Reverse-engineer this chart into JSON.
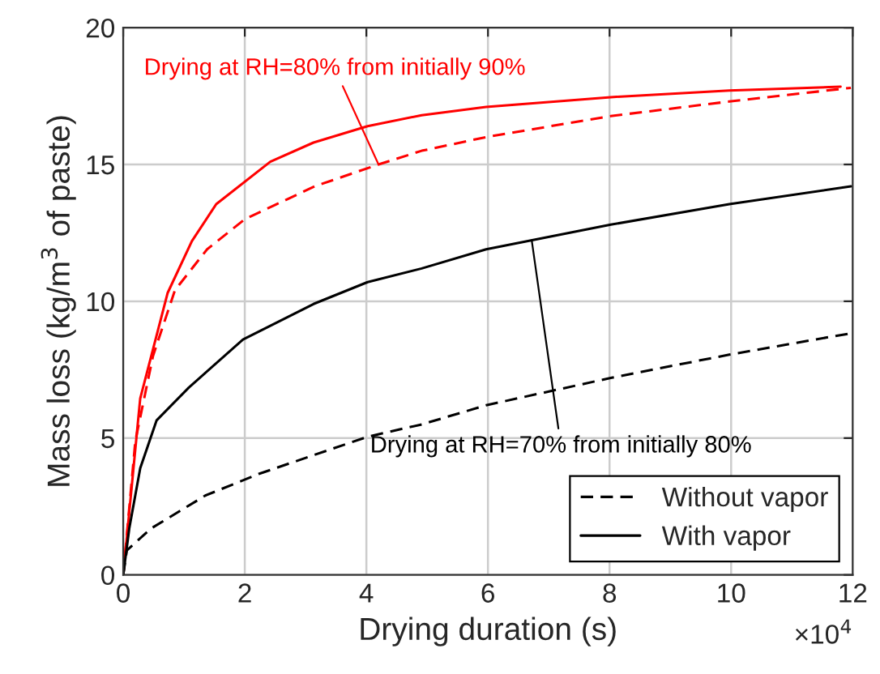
{
  "chart_data": {
    "type": "line",
    "xlabel": "Drying duration (s)",
    "ylabel": "Mass loss (kg/m$^{3}$ of paste)",
    "xlim": [
      0,
      12
    ],
    "xticks": [
      0,
      2,
      4,
      6,
      8,
      10,
      12
    ],
    "ylim": [
      0,
      20
    ],
    "yticks": [
      0,
      5,
      10,
      15,
      20
    ],
    "grid": true,
    "legend": "bottom right",
    "marker": "none",
    "series": [
      {
        "color": "#ff0000",
        "line_style": "solid",
        "x": [
          0,
          0.28,
          0.73,
          1.13,
          1.53,
          2.42,
          3.13,
          4.02,
          4.91,
          5.97,
          8.02,
          9.97,
          11.8
        ],
        "values": [
          0,
          6.45,
          10.3,
          12.2,
          13.55,
          15.1,
          15.8,
          16.4,
          16.8,
          17.1,
          17.46,
          17.7,
          17.84
        ]
      },
      {
        "color": "#ff0000",
        "line_style": "dashed",
        "x": [
          0,
          0.2,
          0.49,
          0.85,
          1.38,
          2,
          3.15,
          4.2,
          4.91,
          5.97,
          8.02,
          9.97,
          11.97
        ],
        "values": [
          0,
          4.9,
          8.0,
          10.4,
          11.9,
          13.0,
          14.2,
          15.0,
          15.5,
          16.0,
          16.77,
          17.3,
          17.8
        ]
      },
      {
        "name": "Without vapor",
        "color": "#000000",
        "line_style": "dashed",
        "x": [
          0,
          0.06,
          0.46,
          1.35,
          2.24,
          4.02,
          4.91,
          5.97,
          8.02,
          9.97,
          11.97
        ],
        "values": [
          0,
          0.9,
          1.7,
          2.9,
          3.7,
          5.05,
          5.5,
          6.2,
          7.2,
          8.05,
          8.83
        ]
      },
      {
        "name": "With vapor",
        "color": "#000000",
        "line_style": "solid",
        "x": [
          0,
          0.1,
          0.28,
          0.55,
          1.08,
          1.97,
          3.13,
          4.02,
          4.91,
          5.97,
          8.02,
          9.97,
          11.97
        ],
        "values": [
          0,
          1.7,
          3.9,
          5.65,
          6.85,
          8.6,
          9.9,
          10.7,
          11.2,
          11.9,
          12.8,
          13.55,
          14.2
        ]
      }
    ],
    "annotations": [
      {
        "text": "Drying at RH=80% from initially 90%",
        "x": 4.2,
        "y": 15.0
      },
      {
        "text": "Drying at RH=70% from initially 80%",
        "x": 6.72,
        "y": 12.23
      },
      "×10$^{4}$"
    ]
  }
}
